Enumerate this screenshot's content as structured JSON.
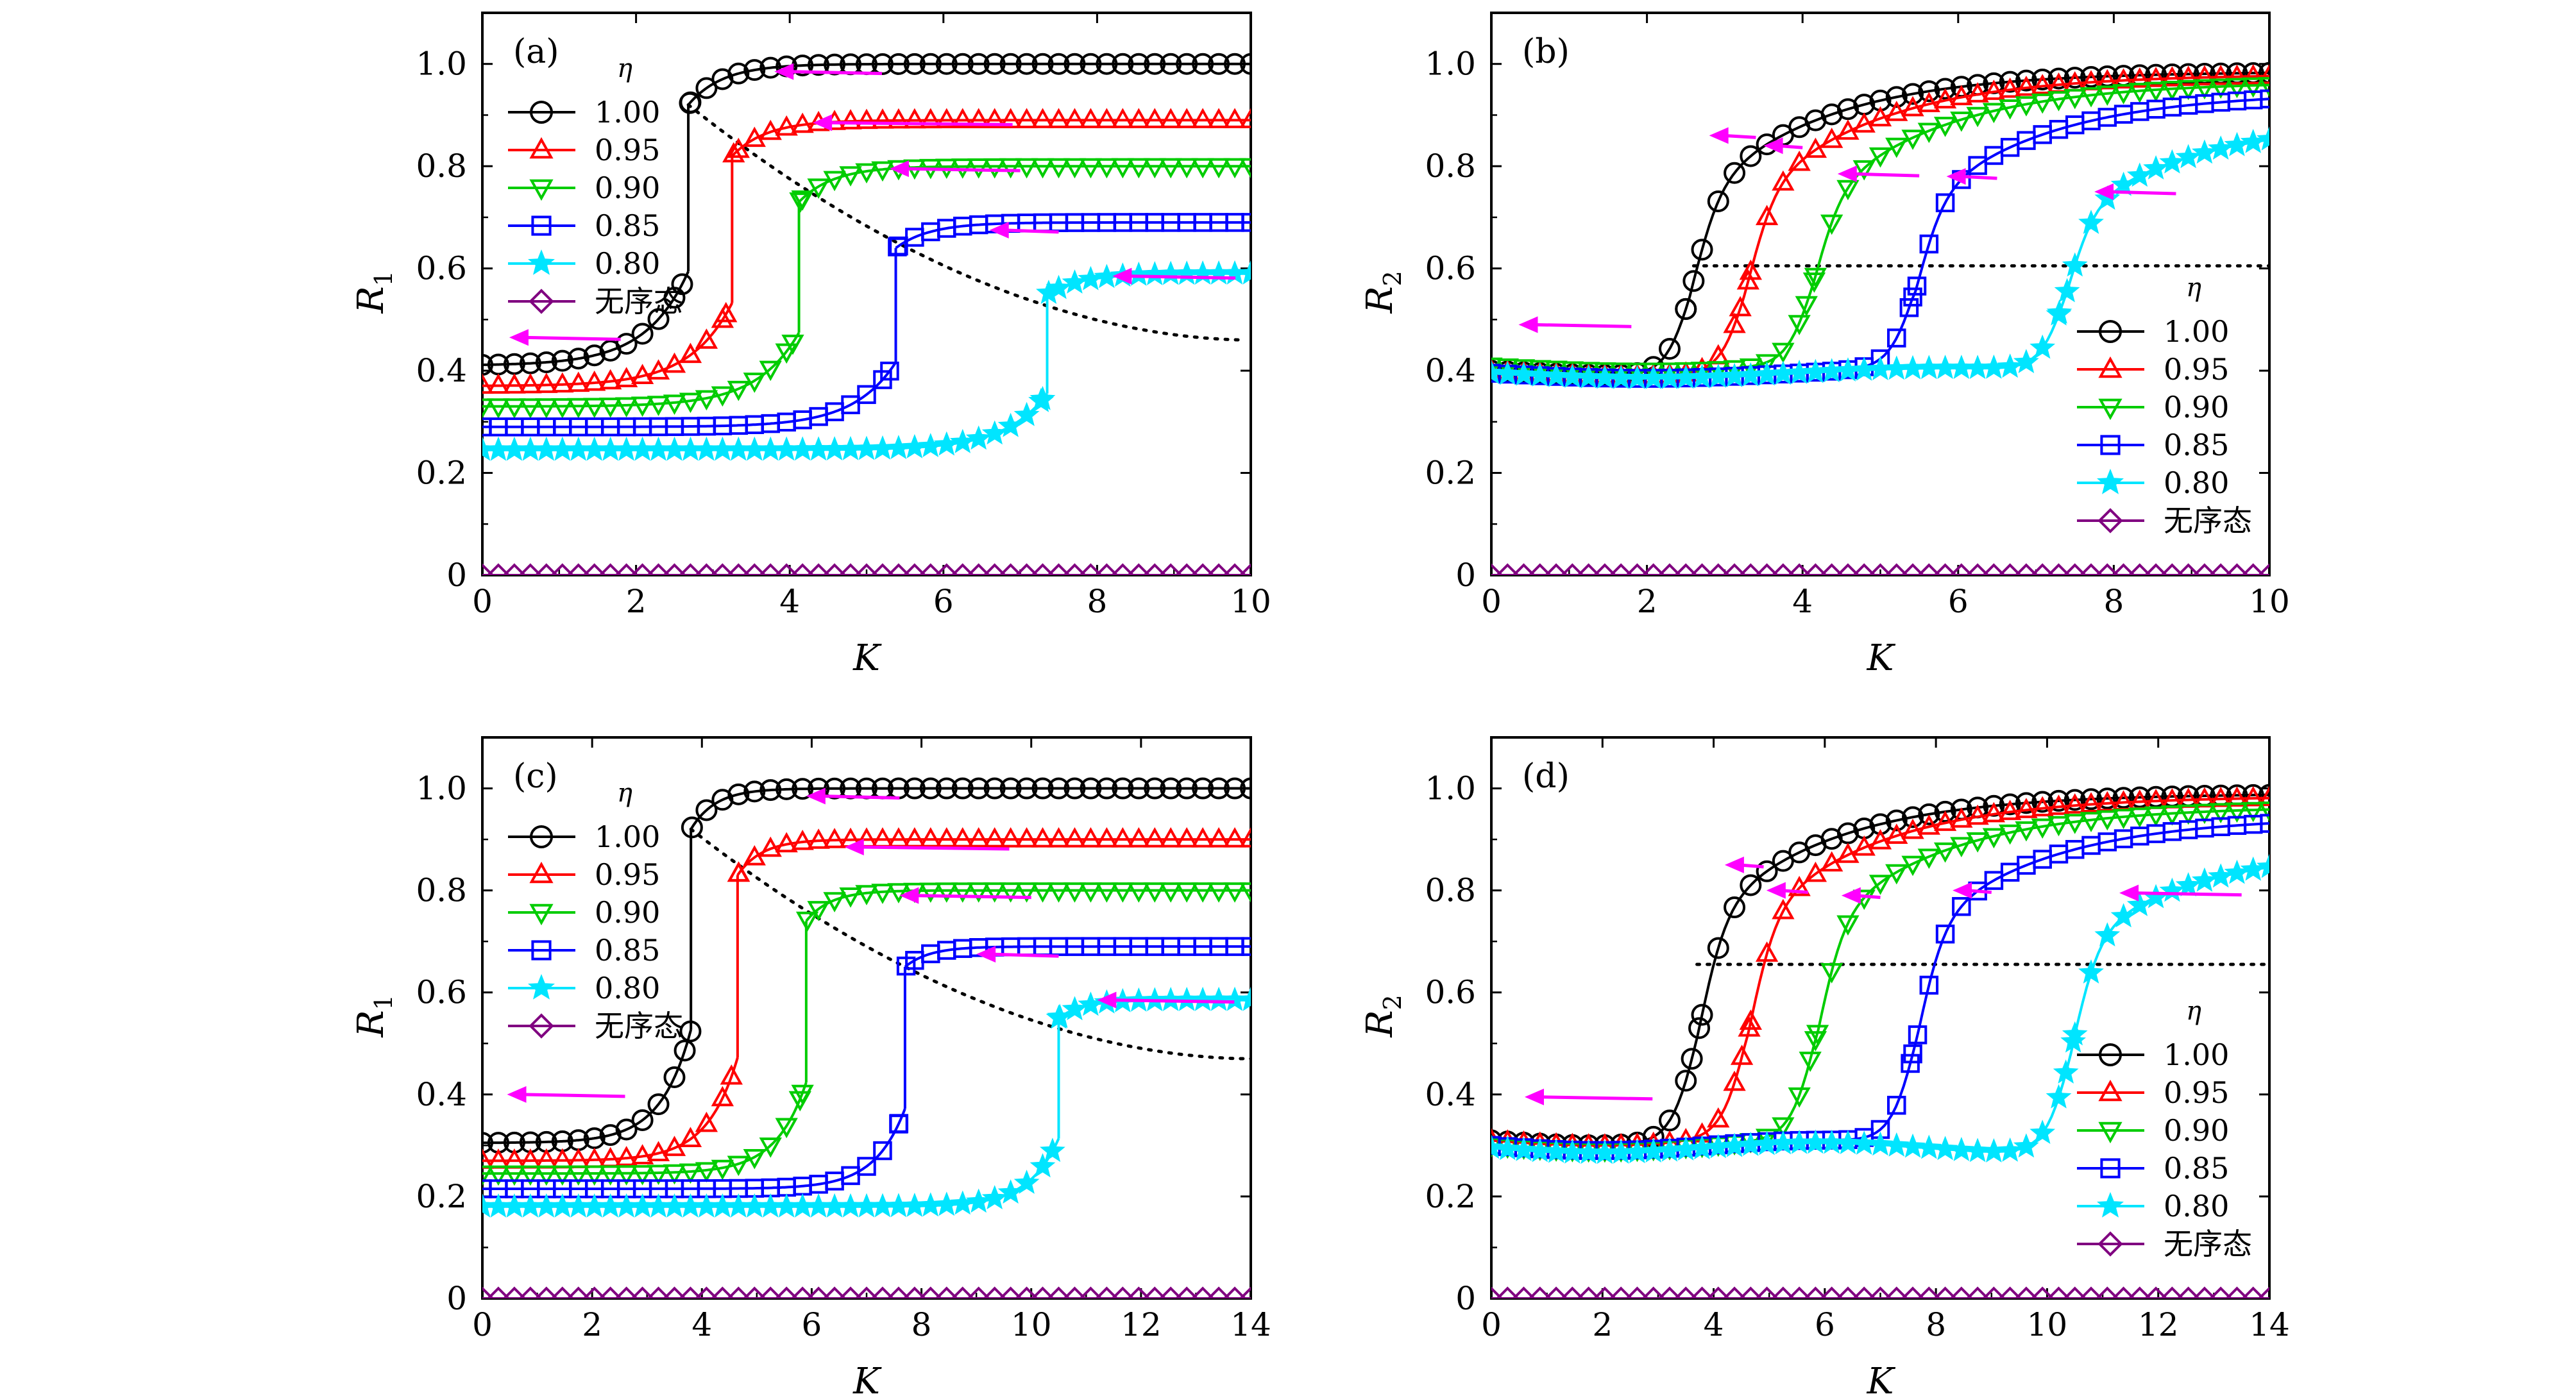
{
  "chart_data": [
    {
      "type": "line",
      "panel_label": "(a)",
      "xlabel": "K",
      "ylabel_main": "R",
      "ylabel_sub": "1",
      "xlim": [
        0,
        10
      ],
      "ylim": [
        0,
        1.1
      ],
      "xticks": [
        0,
        2,
        4,
        6,
        8,
        10
      ],
      "yticks": [
        0,
        0.2,
        0.4,
        0.6,
        0.8,
        1.0
      ],
      "ytick_labels": [
        "0",
        "0.2",
        "0.4",
        "0.6",
        "0.8",
        "1.0"
      ],
      "legend_title": "η",
      "legend_position": "top-left",
      "series": [
        {
          "name": "1.00",
          "color": "#000000",
          "marker": "circle",
          "Kc": 2.68,
          "low": 0.41,
          "jump": 0.92,
          "high": 1.0
        },
        {
          "name": "0.95",
          "color": "#ff0000",
          "marker": "triangle-up",
          "Kc": 3.25,
          "low": 0.37,
          "jump": 0.82,
          "high": 0.89
        },
        {
          "name": "0.90",
          "color": "#00cc00",
          "marker": "triangle-down",
          "Kc": 4.12,
          "low": 0.33,
          "jump": 0.73,
          "high": 0.8
        },
        {
          "name": "0.85",
          "color": "#0000ff",
          "marker": "square",
          "Kc": 5.38,
          "low": 0.29,
          "jump": 0.64,
          "high": 0.69
        },
        {
          "name": "0.80",
          "color": "#00e5ff",
          "marker": "star",
          "Kc": 7.35,
          "low": 0.245,
          "jump": 0.55,
          "high": 0.59
        },
        {
          "name": "无序态",
          "color": "#800080",
          "marker": "diamond",
          "Kc": null,
          "low": 0,
          "jump": 0,
          "high": 0
        }
      ],
      "dotted_curve": {
        "type": "decay",
        "x_from": 2.68,
        "y_from": 0.92,
        "x_to": 10,
        "y_to": 0.46
      },
      "arrows": [
        {
          "x_tail": 1.8,
          "x_head": 0.35,
          "y": 0.465
        },
        {
          "x_tail": 5.2,
          "x_head": 3.8,
          "y": 0.985
        },
        {
          "x_tail": 6.9,
          "x_head": 4.3,
          "y": 0.885
        },
        {
          "x_tail": 7.0,
          "x_head": 5.3,
          "y": 0.795
        },
        {
          "x_tail": 7.5,
          "x_head": 6.6,
          "y": 0.675
        },
        {
          "x_tail": 9.8,
          "x_head": 8.2,
          "y": 0.585
        }
      ]
    },
    {
      "type": "line",
      "panel_label": "(b)",
      "xlabel": "K",
      "ylabel_main": "R",
      "ylabel_sub": "2",
      "xlim": [
        0,
        10
      ],
      "ylim": [
        0,
        1.1
      ],
      "xticks": [
        0,
        2,
        4,
        6,
        8,
        10
      ],
      "yticks": [
        0,
        0.2,
        0.4,
        0.6,
        0.8,
        1.0
      ],
      "ytick_labels": [
        "0",
        "0.2",
        "0.4",
        "0.6",
        "0.8",
        "1.0"
      ],
      "legend_title": "η",
      "legend_position": "bottom-right",
      "series": [
        {
          "name": "1.00",
          "color": "#000000",
          "marker": "circle",
          "Kc": 2.58,
          "start": 0.4,
          "high": 0.985
        },
        {
          "name": "0.95",
          "color": "#ff0000",
          "marker": "triangle-up",
          "Kc": 3.28,
          "start": 0.4,
          "high": 0.98
        },
        {
          "name": "0.90",
          "color": "#00cc00",
          "marker": "triangle-down",
          "Kc": 4.13,
          "start": 0.41,
          "high": 0.965
        },
        {
          "name": "0.85",
          "color": "#0000ff",
          "marker": "square",
          "Kc": 5.45,
          "start": 0.395,
          "high": 0.945
        },
        {
          "name": "0.80",
          "color": "#00e5ff",
          "marker": "star",
          "Kc": 7.38,
          "start": 0.395,
          "high": 0.89
        },
        {
          "name": "无序态",
          "color": "#800080",
          "marker": "diamond",
          "Kc": null,
          "start": 0,
          "high": 0
        }
      ],
      "dotted_hline": {
        "y": 0.605,
        "x_from": 2.6,
        "x_to": 10
      },
      "arrows": [
        {
          "x_tail": 1.8,
          "x_head": 0.35,
          "y": 0.49
        },
        {
          "x_tail": 3.4,
          "x_head": 2.8,
          "y": 0.86
        },
        {
          "x_tail": 4.0,
          "x_head": 3.5,
          "y": 0.84
        },
        {
          "x_tail": 5.5,
          "x_head": 4.45,
          "y": 0.785
        },
        {
          "x_tail": 6.5,
          "x_head": 5.85,
          "y": 0.78
        },
        {
          "x_tail": 8.8,
          "x_head": 7.75,
          "y": 0.75
        }
      ]
    },
    {
      "type": "line",
      "panel_label": "(c)",
      "xlabel": "K",
      "ylabel_main": "R",
      "ylabel_sub": "1",
      "xlim": [
        0,
        14
      ],
      "ylim": [
        0,
        1.1
      ],
      "xticks": [
        0,
        2,
        4,
        6,
        8,
        10,
        12,
        14
      ],
      "yticks": [
        0,
        0.2,
        0.4,
        0.6,
        0.8,
        1.0
      ],
      "ytick_labels": [
        "0",
        "0.2",
        "0.4",
        "0.6",
        "0.8",
        "1.0"
      ],
      "legend_title": "η",
      "legend_position": "top-left",
      "series": [
        {
          "name": "1.00",
          "color": "#000000",
          "marker": "circle",
          "Kc": 3.8,
          "low": 0.305,
          "jump": 0.92,
          "high": 1.0
        },
        {
          "name": "0.95",
          "color": "#ff0000",
          "marker": "triangle-up",
          "Kc": 4.65,
          "low": 0.27,
          "jump": 0.83,
          "high": 0.9
        },
        {
          "name": "0.90",
          "color": "#00cc00",
          "marker": "triangle-down",
          "Kc": 5.9,
          "low": 0.245,
          "jump": 0.74,
          "high": 0.8
        },
        {
          "name": "0.85",
          "color": "#0000ff",
          "marker": "square",
          "Kc": 7.7,
          "low": 0.215,
          "jump": 0.65,
          "high": 0.69
        },
        {
          "name": "0.80",
          "color": "#00e5ff",
          "marker": "star",
          "Kc": 10.5,
          "low": 0.18,
          "jump": 0.55,
          "high": 0.585
        },
        {
          "name": "无序态",
          "color": "#800080",
          "marker": "diamond",
          "Kc": null,
          "low": 0,
          "jump": 0,
          "high": 0
        }
      ],
      "dotted_curve": {
        "type": "decay",
        "x_from": 3.8,
        "y_from": 0.92,
        "x_to": 14,
        "y_to": 0.47
      },
      "arrows": [
        {
          "x_tail": 2.6,
          "x_head": 0.45,
          "y": 0.4
        },
        {
          "x_tail": 7.6,
          "x_head": 5.9,
          "y": 0.985
        },
        {
          "x_tail": 9.6,
          "x_head": 6.6,
          "y": 0.885
        },
        {
          "x_tail": 10.0,
          "x_head": 7.6,
          "y": 0.79
        },
        {
          "x_tail": 10.5,
          "x_head": 9.0,
          "y": 0.675
        },
        {
          "x_tail": 13.7,
          "x_head": 11.2,
          "y": 0.585
        }
      ]
    },
    {
      "type": "line",
      "panel_label": "(d)",
      "xlabel": "K",
      "ylabel_main": "R",
      "ylabel_sub": "2",
      "xlim": [
        0,
        14
      ],
      "ylim": [
        0,
        1.1
      ],
      "xticks": [
        0,
        2,
        4,
        6,
        8,
        10,
        12,
        14
      ],
      "yticks": [
        0,
        0.2,
        0.4,
        0.6,
        0.8,
        1.0
      ],
      "ytick_labels": [
        "0",
        "0.2",
        "0.4",
        "0.6",
        "0.8",
        "1.0"
      ],
      "legend_title": "η",
      "legend_position": "bottom-right",
      "series": [
        {
          "name": "1.00",
          "color": "#000000",
          "marker": "circle",
          "Kc": 3.72,
          "start": 0.31,
          "high": 0.99
        },
        {
          "name": "0.95",
          "color": "#ff0000",
          "marker": "triangle-up",
          "Kc": 4.62,
          "start": 0.31,
          "high": 0.985
        },
        {
          "name": "0.90",
          "color": "#00cc00",
          "marker": "triangle-down",
          "Kc": 5.85,
          "start": 0.3,
          "high": 0.965
        },
        {
          "name": "0.85",
          "color": "#0000ff",
          "marker": "square",
          "Kc": 7.65,
          "start": 0.3,
          "high": 0.945
        },
        {
          "name": "0.80",
          "color": "#00e5ff",
          "marker": "star",
          "Kc": 10.45,
          "start": 0.295,
          "high": 0.885
        },
        {
          "name": "无序态",
          "color": "#800080",
          "marker": "diamond",
          "Kc": null,
          "start": 0,
          "high": 0
        }
      ],
      "dotted_hline": {
        "y": 0.655,
        "x_from": 3.7,
        "x_to": 14
      },
      "arrows": [
        {
          "x_tail": 2.9,
          "x_head": 0.6,
          "y": 0.395
        },
        {
          "x_tail": 4.9,
          "x_head": 4.2,
          "y": 0.85
        },
        {
          "x_tail": 5.7,
          "x_head": 4.95,
          "y": 0.8
        },
        {
          "x_tail": 7.0,
          "x_head": 6.3,
          "y": 0.79
        },
        {
          "x_tail": 9.0,
          "x_head": 8.3,
          "y": 0.8
        },
        {
          "x_tail": 13.5,
          "x_head": 11.3,
          "y": 0.795
        }
      ]
    }
  ]
}
